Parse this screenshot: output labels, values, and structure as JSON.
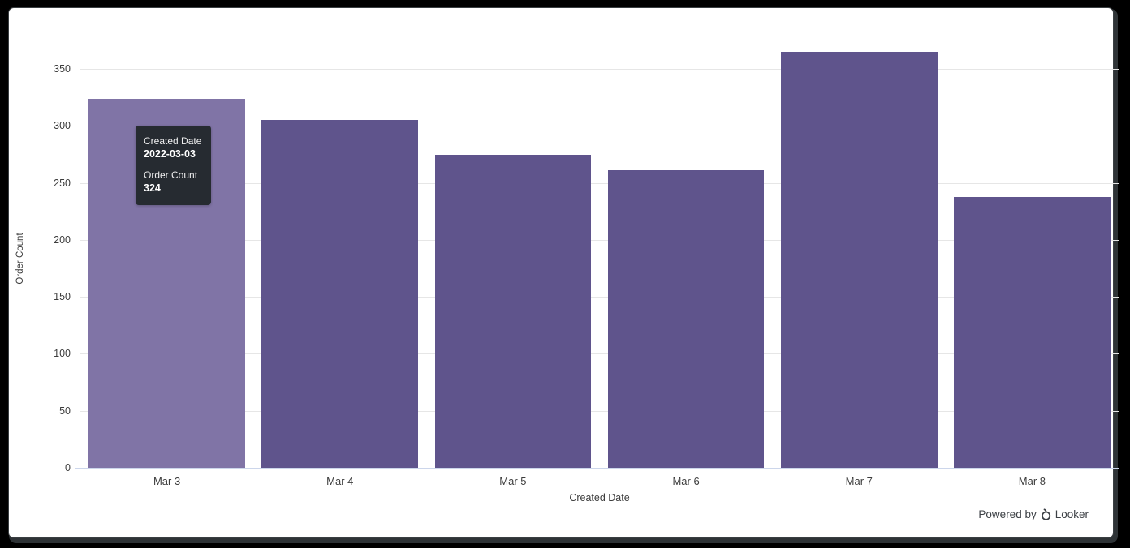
{
  "chart_data": {
    "type": "bar",
    "categories": [
      "Mar 3",
      "Mar 4",
      "Mar 5",
      "Mar 6",
      "Mar 7",
      "Mar 8"
    ],
    "values": [
      324,
      305,
      275,
      261,
      365,
      238
    ],
    "title": "",
    "xlabel": "Created Date",
    "ylabel": "Order Count",
    "ylim": [
      0,
      365
    ],
    "yticks": [
      0,
      50,
      100,
      150,
      200,
      250,
      300,
      350
    ],
    "grid": true,
    "legend": "none",
    "hovered_index": 0,
    "colors": {
      "bar": "#5f548c",
      "bar_hover": "#8074a6",
      "grid_line": "#e6e6e6",
      "axis_line": "#ccd6eb",
      "label_text": "#3c3c3c"
    }
  },
  "tooltip": {
    "dimension_label": "Created Date",
    "dimension_value": "2022-03-03",
    "measure_label": "Order Count",
    "measure_value": "324"
  },
  "footer": {
    "powered_by_label": "Powered by",
    "brand_label": "Looker"
  }
}
